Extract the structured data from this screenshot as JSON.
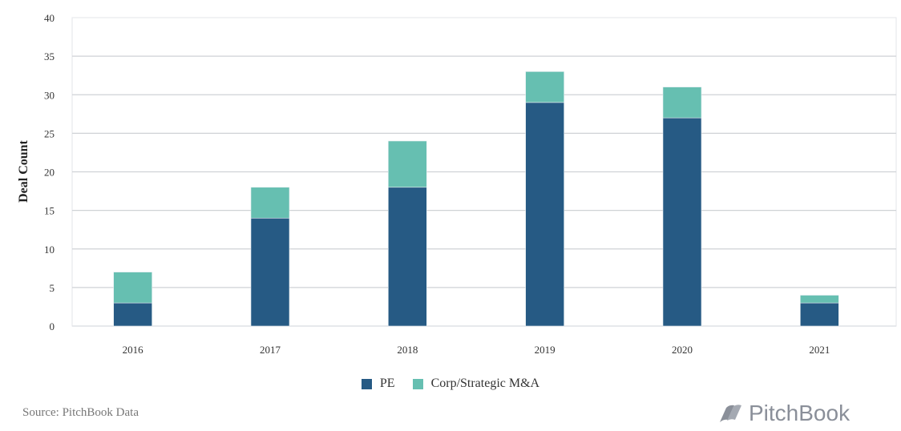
{
  "chart_data": {
    "type": "bar",
    "stacked": true,
    "title": "",
    "xlabel": "",
    "ylabel": "Deal Count",
    "ylim": [
      0,
      40
    ],
    "yticks": [
      0,
      5,
      10,
      15,
      20,
      25,
      30,
      35,
      40
    ],
    "grid": true,
    "legend_position": "bottom-center",
    "categories": [
      "2016",
      "2017",
      "2018",
      "2019",
      "2020",
      "2021"
    ],
    "series": [
      {
        "name": "PE",
        "color": "#265a84",
        "values": [
          3,
          14,
          18,
          29,
          27,
          3
        ]
      },
      {
        "name": "Corp/Strategic M&A",
        "color": "#66bfb1",
        "values": [
          4,
          4,
          6,
          4,
          4,
          1
        ]
      }
    ]
  },
  "source": "Source: PitchBook Data",
  "logo_text": "PitchBook"
}
